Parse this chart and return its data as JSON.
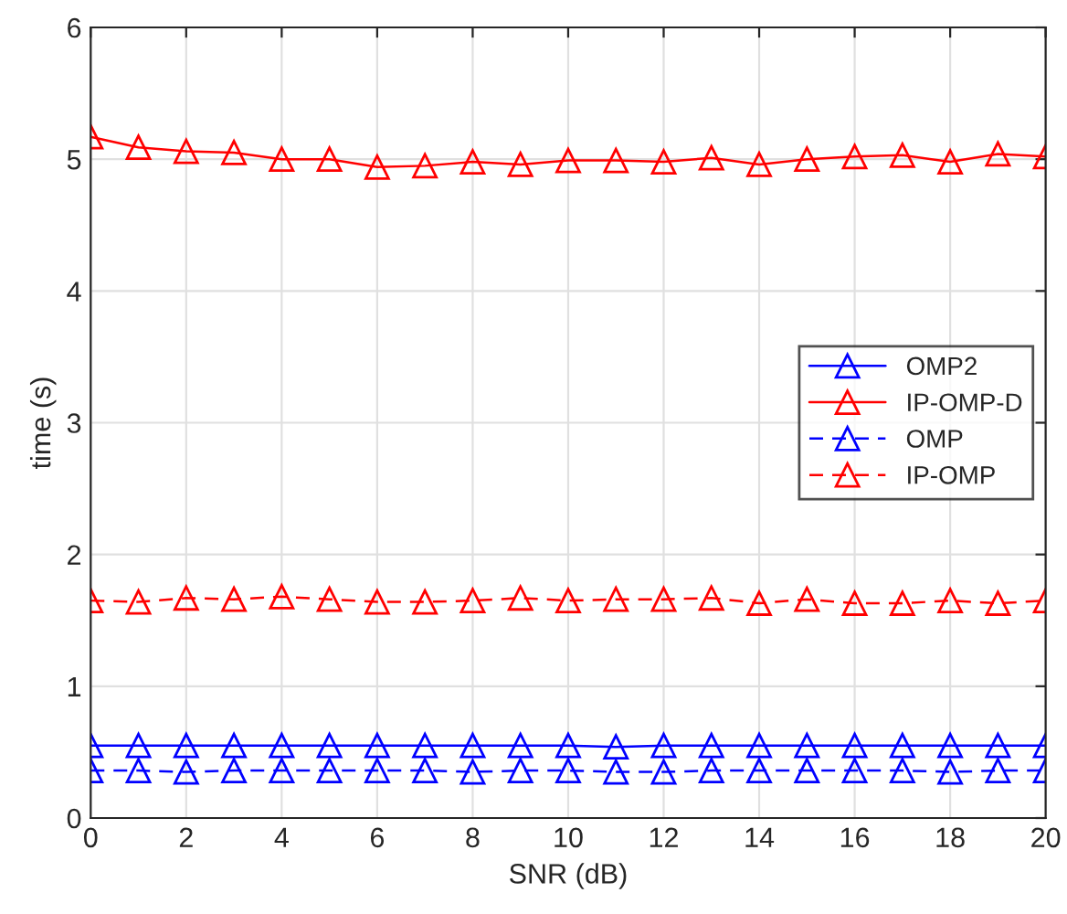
{
  "chart_data": {
    "type": "line",
    "xlabel": "SNR (dB)",
    "ylabel": "time (s)",
    "x": [
      0,
      1,
      2,
      3,
      4,
      5,
      6,
      7,
      8,
      9,
      10,
      11,
      12,
      13,
      14,
      15,
      16,
      17,
      18,
      19,
      20
    ],
    "series": [
      {
        "name": "OMP2",
        "color": "#0000ff",
        "line_style": "solid",
        "values": [
          0.55,
          0.55,
          0.55,
          0.55,
          0.55,
          0.55,
          0.55,
          0.55,
          0.55,
          0.55,
          0.55,
          0.54,
          0.55,
          0.55,
          0.55,
          0.55,
          0.55,
          0.55,
          0.55,
          0.55,
          0.55
        ]
      },
      {
        "name": "IP-OMP-D",
        "color": "#ff0000",
        "line_style": "solid",
        "values": [
          5.17,
          5.09,
          5.06,
          5.05,
          5.0,
          5.0,
          4.94,
          4.95,
          4.98,
          4.96,
          4.99,
          4.99,
          4.98,
          5.01,
          4.96,
          5.0,
          5.02,
          5.03,
          4.98,
          5.04,
          5.02
        ]
      },
      {
        "name": "OMP",
        "color": "#0000ff",
        "line_style": "dashed",
        "values": [
          0.36,
          0.36,
          0.35,
          0.36,
          0.36,
          0.36,
          0.36,
          0.36,
          0.35,
          0.36,
          0.36,
          0.35,
          0.35,
          0.36,
          0.36,
          0.36,
          0.36,
          0.36,
          0.35,
          0.36,
          0.36
        ]
      },
      {
        "name": "IP-OMP",
        "color": "#ff0000",
        "line_style": "dashed",
        "values": [
          1.65,
          1.64,
          1.67,
          1.66,
          1.68,
          1.66,
          1.64,
          1.64,
          1.65,
          1.67,
          1.65,
          1.66,
          1.66,
          1.67,
          1.63,
          1.66,
          1.63,
          1.63,
          1.65,
          1.63,
          1.65
        ]
      }
    ],
    "xlim": [
      0,
      20
    ],
    "xticks": [
      0,
      2,
      4,
      6,
      8,
      10,
      12,
      14,
      16,
      18,
      20
    ],
    "ylim": [
      0,
      6
    ],
    "yticks": [
      0,
      1,
      2,
      3,
      4,
      5,
      6
    ],
    "grid": true,
    "legend": "center right",
    "marker": "triangle"
  }
}
